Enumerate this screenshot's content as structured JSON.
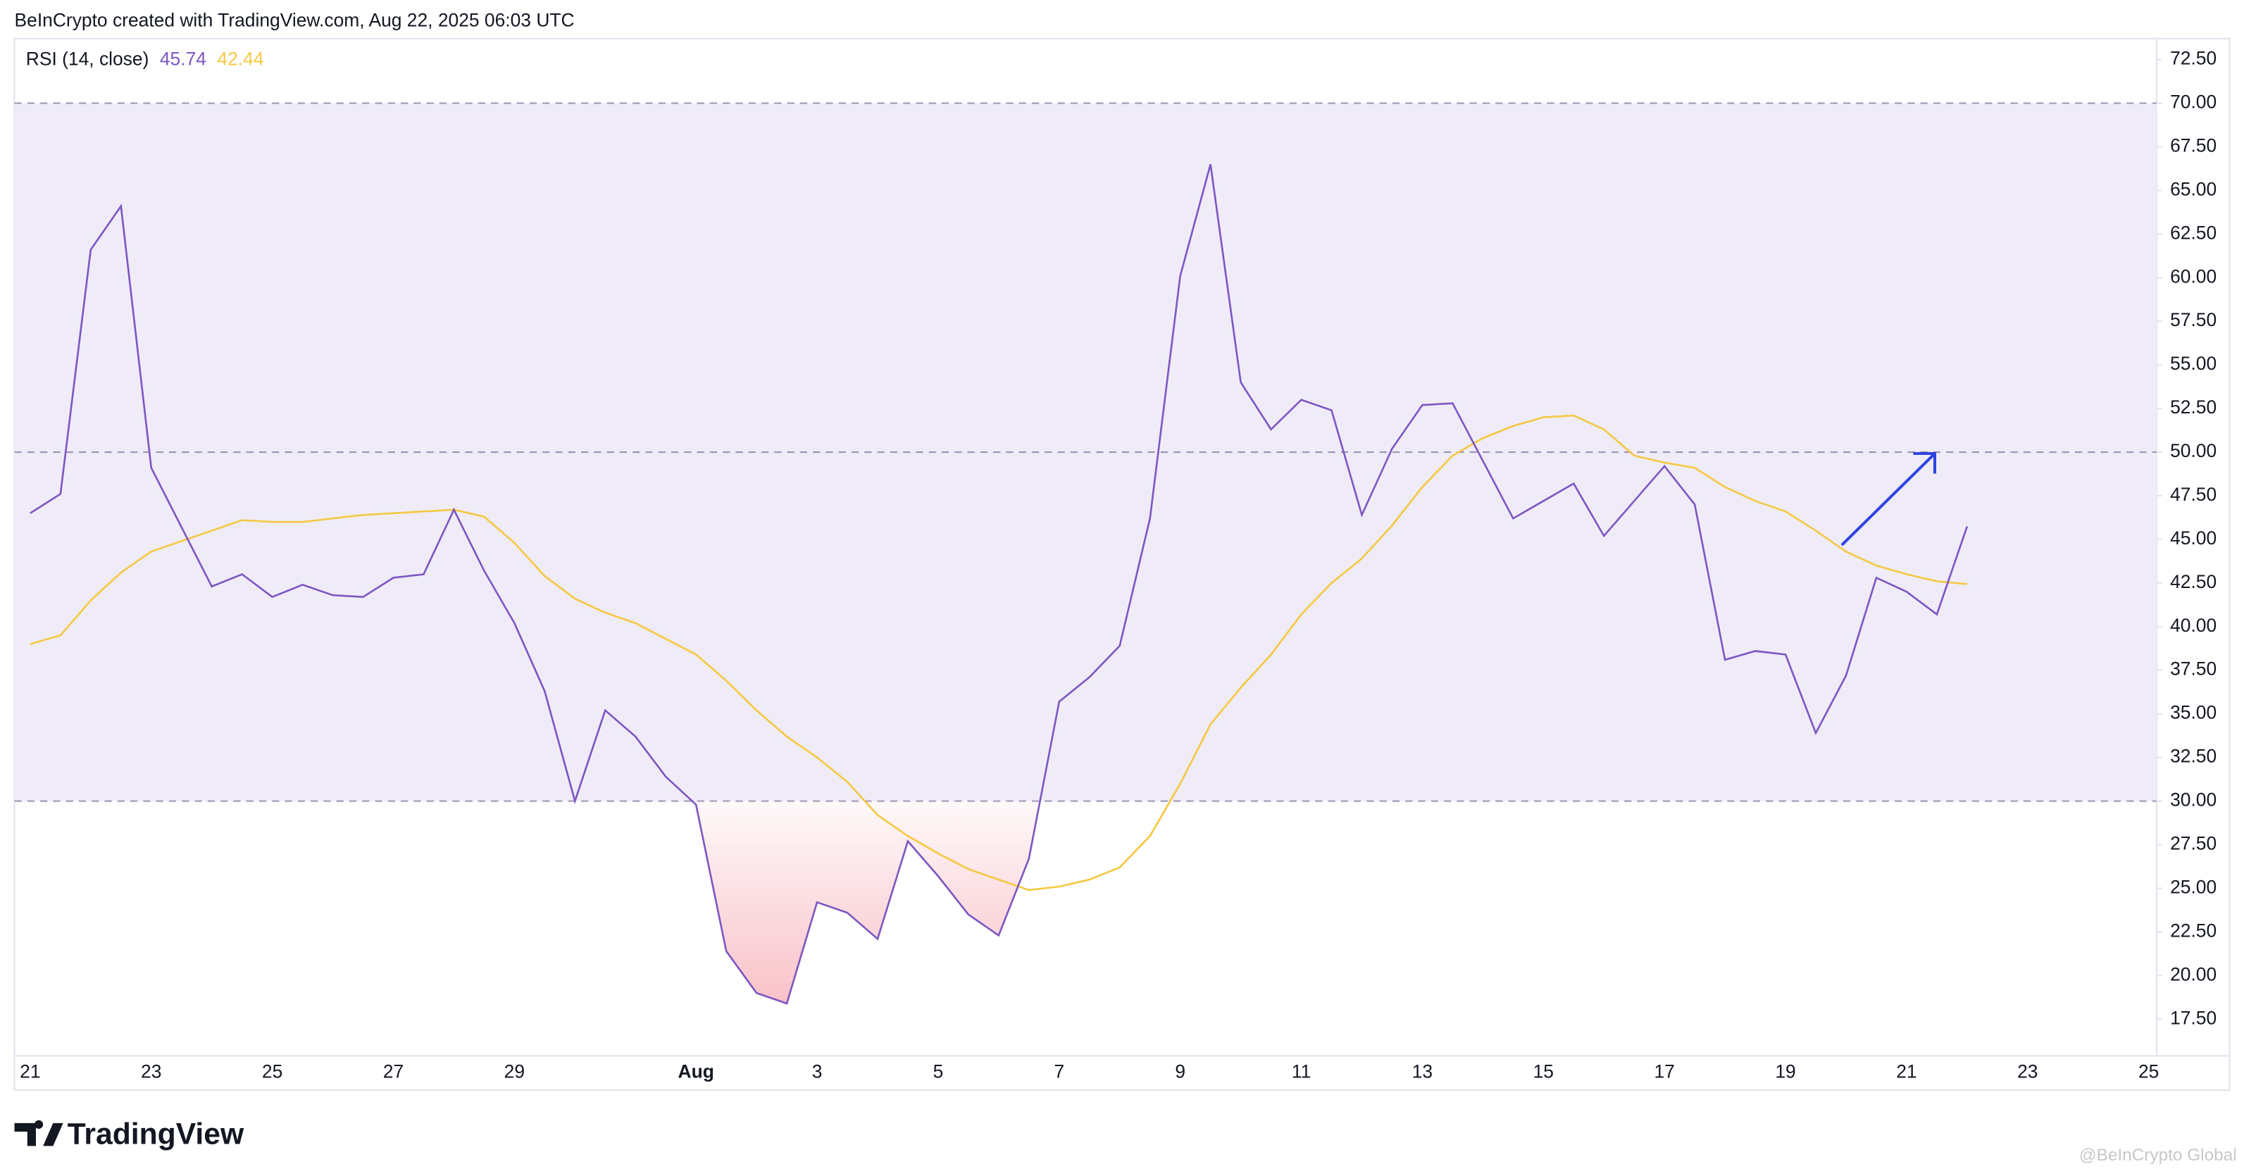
{
  "header": {
    "text": "BeInCrypto created with TradingView.com, Aug 22, 2025 06:03 UTC"
  },
  "footer": {
    "logo": "TradingView",
    "watermark": "@BeInCrypto Global"
  },
  "chart_data": {
    "type": "line",
    "indicator": "RSI (14, close)",
    "categories": [
      "21",
      null,
      null,
      null,
      "23",
      null,
      null,
      null,
      "25",
      null,
      null,
      null,
      "27",
      null,
      null,
      null,
      "29",
      null,
      null,
      null,
      null,
      null,
      "Aug",
      null,
      null,
      null,
      "3",
      null,
      null,
      null,
      "5",
      null,
      null,
      null,
      "7",
      null,
      null,
      null,
      "9",
      null,
      null,
      null,
      "11",
      null,
      null,
      null,
      "13",
      null,
      null,
      null,
      "15",
      null,
      null,
      null,
      "17",
      null,
      null,
      null,
      "19",
      null,
      null,
      null,
      "21",
      null,
      null,
      null,
      "23",
      null,
      null,
      null,
      "25"
    ],
    "series": [
      {
        "color": "#7e57c2",
        "values": [
          46.5,
          47.6,
          61.6,
          64.1,
          49.1,
          45.7,
          42.3,
          43.0,
          41.7,
          42.4,
          41.8,
          41.7,
          42.8,
          43.0,
          46.7,
          43.2,
          40.2,
          36.3,
          30.0,
          35.2,
          33.7,
          31.4,
          29.8,
          21.4,
          19.0,
          18.4,
          24.2,
          23.6,
          22.1,
          27.7,
          25.7,
          23.5,
          22.3,
          26.7,
          35.7,
          37.1,
          38.9,
          46.2,
          60.1,
          66.5,
          54.0,
          51.3,
          53.0,
          52.4,
          46.4,
          50.2,
          52.7,
          52.8,
          49.5,
          46.2,
          47.2,
          48.2,
          45.2,
          47.2,
          49.2,
          47.0,
          38.1,
          38.6,
          38.4,
          33.9,
          37.2,
          42.8,
          42.0,
          40.7,
          45.74,
          null,
          null,
          null,
          null,
          null,
          null
        ]
      },
      {
        "color": "#f5c842",
        "values": [
          39.0,
          39.5,
          41.5,
          43.1,
          44.3,
          44.9,
          45.5,
          46.1,
          46.0,
          46.0,
          46.2,
          46.4,
          46.5,
          46.6,
          46.7,
          46.3,
          44.8,
          42.9,
          41.6,
          40.8,
          40.2,
          39.3,
          38.4,
          36.9,
          35.2,
          33.7,
          32.5,
          31.1,
          29.2,
          28.0,
          27.0,
          26.1,
          25.5,
          24.9,
          25.1,
          25.5,
          26.2,
          28.0,
          31.0,
          34.4,
          36.5,
          38.4,
          40.7,
          42.5,
          43.9,
          45.8,
          48.0,
          49.8,
          50.8,
          51.5,
          52.0,
          52.1,
          51.3,
          49.8,
          49.4,
          49.1,
          48.0,
          47.2,
          46.6,
          45.5,
          44.3,
          43.5,
          43.0,
          42.6,
          42.44,
          null,
          null,
          null,
          null,
          null,
          null
        ]
      }
    ],
    "bands": {
      "upper": 70,
      "middle": 50,
      "lower": 30,
      "fill_color": "#efecf8",
      "oversold_fill_color": "#f9c2c9"
    },
    "ylim": [
      15.4,
      73.7
    ],
    "yticks": [
      {
        "value": 17.5,
        "label": "17.50"
      },
      {
        "value": 20,
        "label": "20.00"
      },
      {
        "value": 22.5,
        "label": "22.50"
      },
      {
        "value": 25,
        "label": "25.00"
      },
      {
        "value": 27.5,
        "label": "27.50"
      },
      {
        "value": 30,
        "label": "30.00"
      },
      {
        "value": 32.5,
        "label": "32.50"
      },
      {
        "value": 35,
        "label": "35.00"
      },
      {
        "value": 37.5,
        "label": "37.50"
      },
      {
        "value": 40,
        "label": "40.00"
      },
      {
        "value": 42.5,
        "label": "42.50"
      },
      {
        "value": 45,
        "label": "45.00"
      },
      {
        "value": 47.5,
        "label": "47.50"
      },
      {
        "value": 50,
        "label": "50.00"
      },
      {
        "value": 52.5,
        "label": "52.50"
      },
      {
        "value": 55,
        "label": "55.00"
      },
      {
        "value": 57.5,
        "label": "57.50"
      },
      {
        "value": 60,
        "label": "60.00"
      },
      {
        "value": 62.5,
        "label": "62.50"
      },
      {
        "value": 65,
        "label": "65.00"
      },
      {
        "value": 67.5,
        "label": "67.50"
      },
      {
        "value": 70,
        "label": "70.00"
      },
      {
        "value": 72.5,
        "label": "72.50"
      }
    ]
  }
}
